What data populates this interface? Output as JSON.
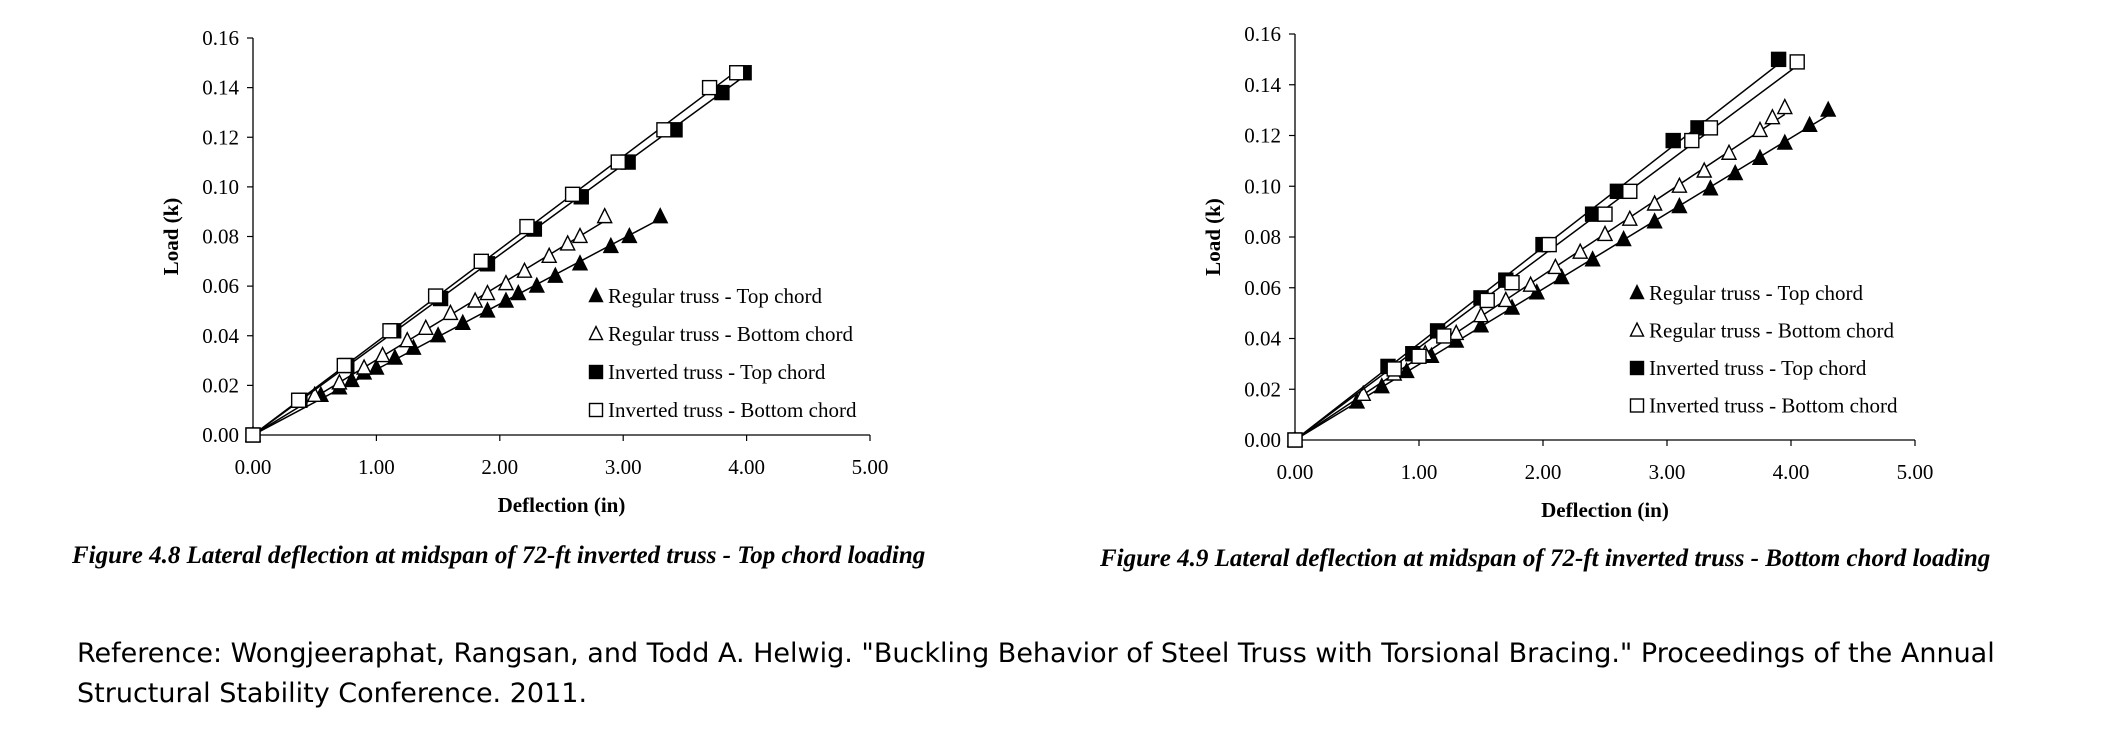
{
  "chart_data": [
    {
      "type": "line",
      "xlabel": "Deflection (in)",
      "ylabel": "Load (k)",
      "xlim": [
        0,
        5
      ],
      "ylim": [
        0,
        0.16
      ],
      "xticks": [
        "0.00",
        "1.00",
        "2.00",
        "3.00",
        "4.00",
        "5.00"
      ],
      "yticks": [
        "0.00",
        "0.02",
        "0.04",
        "0.06",
        "0.08",
        "0.10",
        "0.12",
        "0.14",
        "0.16"
      ],
      "grid": false,
      "legend_position": "bottom-right",
      "series": [
        {
          "name": "Regular truss - Top chord",
          "marker": "filled-triangle",
          "x": [
            0.0,
            0.55,
            0.7,
            0.8,
            0.9,
            1.0,
            1.15,
            1.3,
            1.5,
            1.7,
            1.9,
            2.05,
            2.15,
            2.3,
            2.45,
            2.65,
            2.9,
            3.05,
            3.3
          ],
          "y": [
            0.0,
            0.016,
            0.019,
            0.022,
            0.025,
            0.027,
            0.031,
            0.035,
            0.04,
            0.045,
            0.05,
            0.054,
            0.057,
            0.06,
            0.064,
            0.069,
            0.076,
            0.08,
            0.088
          ]
        },
        {
          "name": "Regular truss - Bottom chord",
          "marker": "open-triangle",
          "x": [
            0.0,
            0.5,
            0.7,
            0.9,
            1.05,
            1.25,
            1.4,
            1.6,
            1.8,
            1.9,
            2.05,
            2.2,
            2.4,
            2.55,
            2.65,
            2.85
          ],
          "y": [
            0.0,
            0.016,
            0.021,
            0.027,
            0.032,
            0.038,
            0.043,
            0.049,
            0.054,
            0.057,
            0.061,
            0.066,
            0.072,
            0.077,
            0.08,
            0.088
          ]
        },
        {
          "name": "Inverted truss - Top chord",
          "marker": "filled-square",
          "x": [
            0.0,
            0.38,
            0.76,
            1.14,
            1.52,
            1.9,
            2.28,
            2.66,
            3.04,
            3.42,
            3.8,
            3.98
          ],
          "y": [
            0.0,
            0.014,
            0.028,
            0.042,
            0.055,
            0.069,
            0.083,
            0.096,
            0.11,
            0.123,
            0.138,
            0.146
          ]
        },
        {
          "name": "Inverted truss - Bottom chord",
          "marker": "open-square",
          "x": [
            0.0,
            0.37,
            0.74,
            1.11,
            1.48,
            1.85,
            2.22,
            2.59,
            2.96,
            3.33,
            3.7,
            3.92
          ],
          "y": [
            0.0,
            0.014,
            0.028,
            0.042,
            0.056,
            0.07,
            0.084,
            0.097,
            0.11,
            0.123,
            0.14,
            0.146
          ]
        }
      ]
    },
    {
      "type": "line",
      "xlabel": "Deflection (in)",
      "ylabel": "Load (k)",
      "xlim": [
        0,
        5
      ],
      "ylim": [
        0,
        0.16
      ],
      "xticks": [
        "0.00",
        "1.00",
        "2.00",
        "3.00",
        "4.00",
        "5.00"
      ],
      "yticks": [
        "0.00",
        "0.02",
        "0.04",
        "0.06",
        "0.08",
        "0.10",
        "0.12",
        "0.14",
        "0.16"
      ],
      "grid": false,
      "legend_position": "bottom-right",
      "series": [
        {
          "name": "Regular truss - Top chord",
          "marker": "filled-triangle",
          "x": [
            0.0,
            0.5,
            0.7,
            0.9,
            1.1,
            1.3,
            1.5,
            1.75,
            1.95,
            2.15,
            2.4,
            2.65,
            2.9,
            3.1,
            3.35,
            3.55,
            3.75,
            3.95,
            4.15,
            4.3
          ],
          "y": [
            0.0,
            0.015,
            0.021,
            0.027,
            0.033,
            0.039,
            0.045,
            0.052,
            0.058,
            0.064,
            0.071,
            0.079,
            0.086,
            0.092,
            0.099,
            0.105,
            0.111,
            0.117,
            0.124,
            0.13
          ]
        },
        {
          "name": "Regular truss - Bottom chord",
          "marker": "open-triangle",
          "x": [
            0.0,
            0.55,
            0.8,
            1.05,
            1.3,
            1.5,
            1.7,
            1.9,
            2.1,
            2.3,
            2.5,
            2.7,
            2.9,
            3.1,
            3.3,
            3.5,
            3.75,
            3.85,
            3.95
          ],
          "y": [
            0.0,
            0.018,
            0.026,
            0.034,
            0.042,
            0.049,
            0.055,
            0.061,
            0.068,
            0.074,
            0.081,
            0.087,
            0.093,
            0.1,
            0.106,
            0.113,
            0.122,
            0.127,
            0.131
          ]
        },
        {
          "name": "Inverted truss - Top chord",
          "marker": "filled-square",
          "x": [
            0.0,
            0.75,
            0.95,
            1.15,
            1.5,
            1.7,
            2.0,
            2.4,
            2.6,
            3.05,
            3.25,
            3.9
          ],
          "y": [
            0.0,
            0.029,
            0.034,
            0.043,
            0.056,
            0.063,
            0.077,
            0.089,
            0.098,
            0.118,
            0.123,
            0.15
          ]
        },
        {
          "name": "Inverted truss - Bottom chord",
          "marker": "open-square",
          "x": [
            0.0,
            0.8,
            1.0,
            1.2,
            1.55,
            1.75,
            2.05,
            2.5,
            2.7,
            3.2,
            3.35,
            4.05
          ],
          "y": [
            0.0,
            0.028,
            0.033,
            0.041,
            0.055,
            0.062,
            0.077,
            0.089,
            0.098,
            0.118,
            0.123,
            0.149
          ]
        }
      ]
    }
  ],
  "captions": {
    "fig1": "Figure 4.8 Lateral deflection at midspan of 72-ft inverted truss - Top chord loading",
    "fig2": "Figure 4.9 Lateral deflection at midspan of 72-ft inverted truss - Bottom chord loading"
  },
  "reference": "Reference: Wongjeeraphat, Rangsan, and Todd A. Helwig. \"Buckling Behavior of Steel Truss with Torsional Bracing.\" Proceedings of the Annual Structural Stability Conference. 2011."
}
